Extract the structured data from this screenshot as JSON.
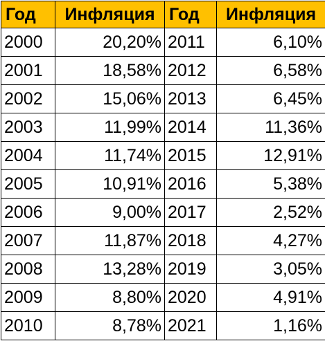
{
  "table": {
    "header": [
      "Год",
      "Инфляция",
      "Год",
      "Инфляция"
    ],
    "rows": [
      [
        "2000",
        "20,20%",
        "2011",
        "6,10%"
      ],
      [
        "2001",
        "18,58%",
        "2012",
        "6,58%"
      ],
      [
        "2002",
        "15,06%",
        "2013",
        "6,45%"
      ],
      [
        "2003",
        "11,99%",
        "2014",
        "11,36%"
      ],
      [
        "2004",
        "11,74%",
        "2015",
        "12,91%"
      ],
      [
        "2005",
        "10,91%",
        "2016",
        "5,38%"
      ],
      [
        "2006",
        "9,00%",
        "2017",
        "2,52%"
      ],
      [
        "2007",
        "11,87%",
        "2018",
        "4,27%"
      ],
      [
        "2008",
        "13,28%",
        "2019",
        "3,05%"
      ],
      [
        "2009",
        "8,80%",
        "2020",
        "4,91%"
      ],
      [
        "2010",
        "8,78%",
        "2021",
        "1,16%"
      ]
    ]
  }
}
